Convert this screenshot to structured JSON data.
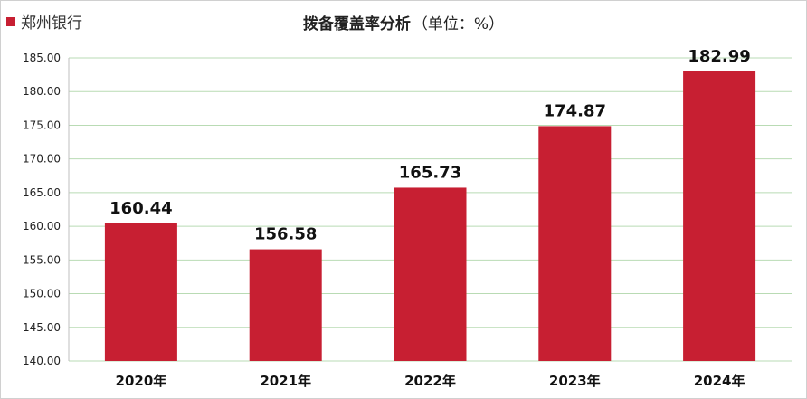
{
  "chart_data": {
    "type": "bar",
    "title": "拨备覆盖率分析",
    "title_unit": "（单位：%）",
    "xlabel": "",
    "ylabel": "",
    "categories": [
      "2020年",
      "2021年",
      "2022年",
      "2023年",
      "2024年"
    ],
    "series": [
      {
        "name": "郑州银行",
        "values": [
          160.44,
          156.58,
          165.73,
          174.87,
          182.99
        ],
        "color": "#c71f32"
      }
    ],
    "ylim": [
      140,
      185
    ],
    "yticks": [
      "140.00",
      "145.00",
      "150.00",
      "155.00",
      "160.00",
      "165.00",
      "170.00",
      "175.00",
      "180.00",
      "185.00"
    ],
    "data_labels": [
      "160.44",
      "156.58",
      "165.73",
      "174.87",
      "182.99"
    ],
    "grid": "horizontal",
    "gridline_color": "#b9dbb4",
    "legend_position": "top-left"
  }
}
